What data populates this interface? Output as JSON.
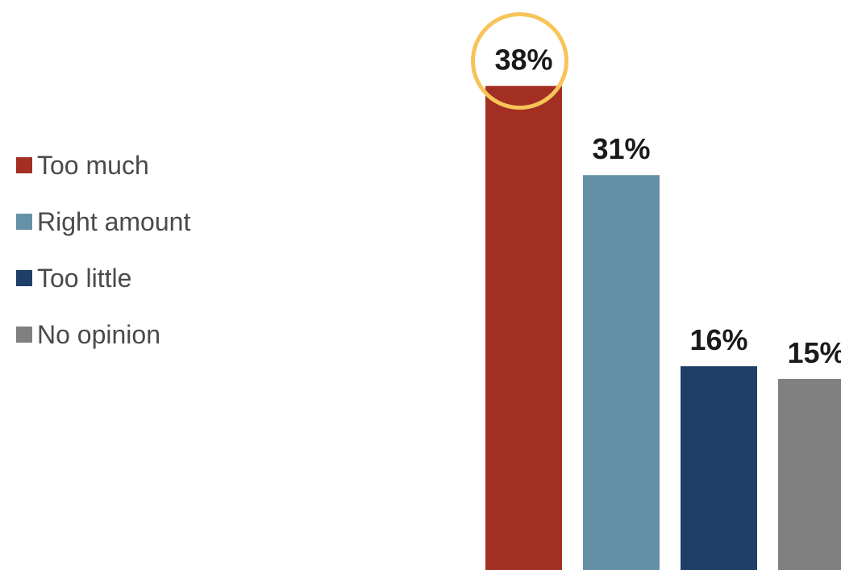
{
  "chart_data": {
    "type": "bar",
    "categories": [
      "Too much",
      "Right amount",
      "Too little",
      "No opinion"
    ],
    "values": [
      38,
      31,
      16,
      15
    ],
    "value_labels": [
      "38%",
      "31%",
      "16%",
      "15%"
    ],
    "colors": [
      "#a32f22",
      "#6591a6",
      "#1f3f68",
      "#808080"
    ],
    "highlight": {
      "index": 0,
      "color": "#f7c45a"
    },
    "title": "",
    "xlabel": "",
    "ylabel": "",
    "ylim": [
      0,
      40
    ],
    "grid": false,
    "legend_position": "left"
  }
}
